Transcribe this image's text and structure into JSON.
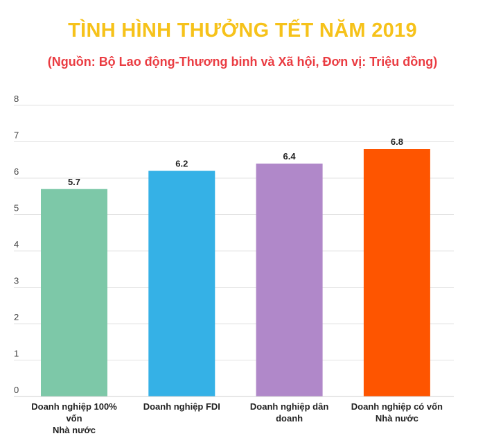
{
  "chart_data": {
    "type": "bar",
    "title": "TÌNH HÌNH THƯỞNG TẾT NĂM 2019",
    "subtitle": "(Nguồn: Bộ Lao động-Thương binh và Xã hội, Đơn vị: Triệu đồng)",
    "categories": [
      "Doanh nghiệp 100% vốn\nNhà nước",
      "Doanh nghiệp FDI",
      "Doanh nghiệp dân\ndoanh",
      "Doanh nghiệp có vốn\nNhà nước"
    ],
    "values": [
      5.7,
      6.2,
      6.4,
      6.8
    ],
    "data_labels": [
      "5.7",
      "6.2",
      "6.4",
      "6.8"
    ],
    "bar_colors": [
      "#7dc8a8",
      "#35b1e6",
      "#b088c9",
      "#fe5500"
    ],
    "ylim": [
      0,
      8
    ],
    "yticks": [
      0,
      1,
      2,
      3,
      4,
      5,
      6,
      7,
      8
    ],
    "grid": true,
    "legend": "none",
    "xlabel": "",
    "ylabel": ""
  },
  "colors": {
    "title": "#f6c21a",
    "subtitle": "#ea3c42",
    "grid": "#e3e3e3",
    "tick_text": "#444444",
    "data_label": "#222222"
  }
}
